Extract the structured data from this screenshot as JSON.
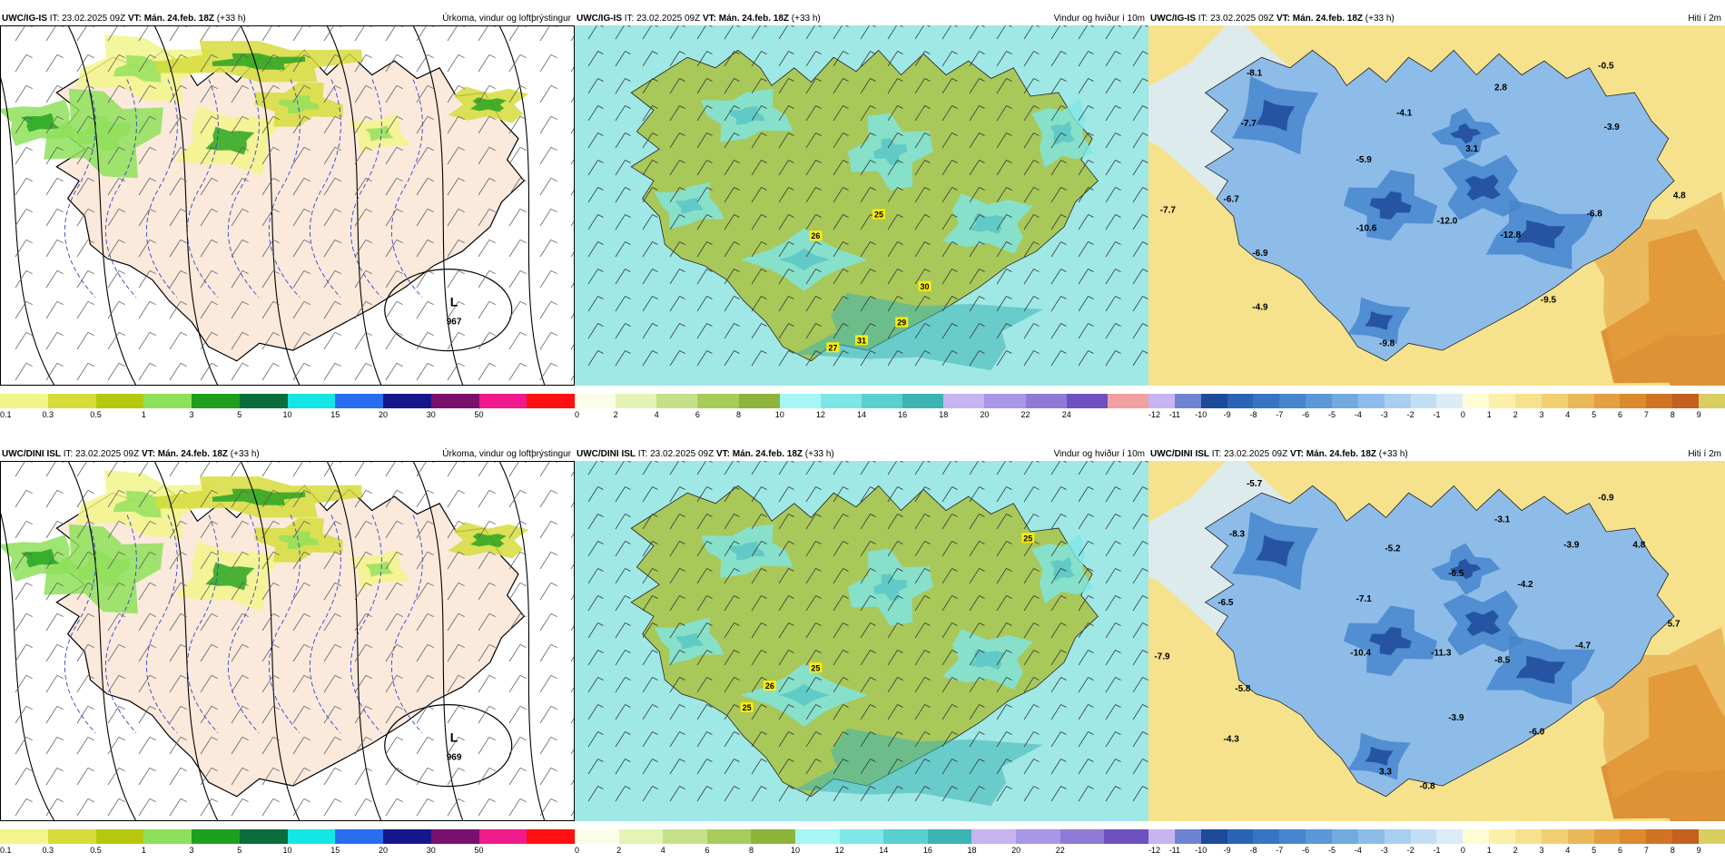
{
  "panels": [
    {
      "id": "p1",
      "model": "UWC/IG-IS",
      "it_label": "IT:",
      "it": "23.02.2025 09Z",
      "vt_label": "VT:",
      "vt": "Mán. 24.feb. 18Z",
      "lead": "(+33 h)",
      "field": "Úrkoma, vindur og loftþrýstingur",
      "kind": "precip",
      "low_label": "L",
      "low_value": "967",
      "labels": []
    },
    {
      "id": "p2",
      "model": "UWC/IG-IS",
      "it_label": "IT:",
      "it": "23.02.2025 09Z",
      "vt_label": "VT:",
      "vt": "Mán. 24.feb. 18Z",
      "lead": "(+33 h)",
      "field": "Vindur og hviður í 10m",
      "kind": "wind",
      "labels": [
        "25",
        "26",
        "30",
        "29",
        "27",
        "31"
      ]
    },
    {
      "id": "p3",
      "model": "UWC/IG-IS",
      "it_label": "IT:",
      "it": "23.02.2025 09Z",
      "vt_label": "VT:",
      "vt": "Mán. 24.feb. 18Z",
      "lead": "(+33 h)",
      "field": "Hiti í 2m",
      "kind": "temp",
      "labels": [
        "-8.1",
        "-7.7",
        "-4.1",
        "2.8",
        "-0.5",
        "-3.9",
        "-5.9",
        "3.1",
        "-6.7",
        "-7.7",
        "-10.6",
        "-12.0",
        "-12.8",
        "-6.8",
        "4.8",
        "-6.9",
        "-4.9",
        "-9.5",
        "-9.8"
      ]
    },
    {
      "id": "p4",
      "model": "UWC/DINI ISL",
      "it_label": "IT:",
      "it": "23.02.2025 09Z",
      "vt_label": "VT:",
      "vt": "Mán. 24.feb. 18Z",
      "lead": "(+33 h)",
      "field": "Úrkoma, vindur og loftþrýstingur",
      "kind": "precip",
      "low_label": "L",
      "low_value": "969",
      "labels": []
    },
    {
      "id": "p5",
      "model": "UWC/DINI ISL",
      "it_label": "IT:",
      "it": "23.02.2025 09Z",
      "vt_label": "VT:",
      "vt": "Mán. 24.feb. 18Z",
      "lead": "(+33 h)",
      "field": "Vindur og hviður í 10m",
      "kind": "wind",
      "labels": [
        "25",
        "25",
        "26",
        "25"
      ]
    },
    {
      "id": "p6",
      "model": "UWC/DINI ISL",
      "it_label": "IT:",
      "it": "23.02.2025 09Z",
      "vt_label": "VT:",
      "vt": "Mán. 24.feb. 18Z",
      "lead": "(+33 h)",
      "field": "Hiti í 2m",
      "kind": "temp",
      "labels": [
        "-5.7",
        "-8.3",
        "-0.9",
        "-3.1",
        "-5.2",
        "-3.9",
        "4.8",
        "-6.5",
        "-7.1",
        "-6.5",
        "-4.2",
        "5.7",
        "-7.9",
        "-10.4",
        "-11.3",
        "-8.5",
        "-4.7",
        "-5.8",
        "-3.9",
        "-4.3",
        "-6.0",
        "3.3",
        "-0.8"
      ]
    }
  ],
  "colorbars": {
    "precip": {
      "ticks": [
        "0.1",
        "0.3",
        "0.5",
        "1",
        "3",
        "5",
        "10",
        "15",
        "20",
        "30",
        "50"
      ],
      "colors": [
        "#f2f58a",
        "#d6dc3c",
        "#b6c80e",
        "#8ee05a",
        "#1ea01e",
        "#0a6e3c",
        "#14e6e6",
        "#2a6cf0",
        "#16168c",
        "#7a0f6e",
        "#ef1a8c",
        "#ff0f0f"
      ]
    },
    "wind": {
      "ticks": [
        "0",
        "2",
        "4",
        "6",
        "8",
        "10",
        "12",
        "14",
        "16",
        "18",
        "20",
        "22",
        "24"
      ],
      "colors": [
        "#fbfde6",
        "#e4f4b4",
        "#c6e08a",
        "#a8cc5a",
        "#8eb43c",
        "#a6f6f6",
        "#7ee6e6",
        "#58d0d0",
        "#3cb4b4",
        "#c8b4f0",
        "#a896e6",
        "#8e7ad6",
        "#6e50c0",
        "#f0a0a0"
      ]
    },
    "wind2": {
      "ticks": [
        "0",
        "2",
        "4",
        "6",
        "8",
        "10",
        "12",
        "14",
        "16",
        "18",
        "20",
        "22"
      ],
      "colors": [
        "#fbfde6",
        "#e4f4b4",
        "#c6e08a",
        "#a8cc5a",
        "#8eb43c",
        "#a6f6f6",
        "#7ee6e6",
        "#58d0d0",
        "#3cb4b4",
        "#c8b4f0",
        "#a896e6",
        "#8e7ad6",
        "#6e50c0"
      ]
    },
    "temp": {
      "ticks": [
        "-12",
        "-11",
        "-10",
        "-9",
        "-8",
        "-7",
        "-6",
        "-5",
        "-4",
        "-3",
        "-2",
        "-1",
        "0",
        "1",
        "2",
        "3",
        "4",
        "5",
        "6",
        "7",
        "8",
        "9"
      ],
      "colors": [
        "#c8b4f0",
        "#6e84d2",
        "#1e4a9a",
        "#2a62b6",
        "#3674c4",
        "#4686ce",
        "#5a98d8",
        "#72aae0",
        "#8ebce8",
        "#a8cef0",
        "#c2def4",
        "#dcecf6",
        "#fffbd2",
        "#faf0a8",
        "#f6e28c",
        "#f0d070",
        "#eab858",
        "#e4a040",
        "#dc8a2c",
        "#d07424",
        "#c46020",
        "#d8cf60"
      ]
    }
  }
}
